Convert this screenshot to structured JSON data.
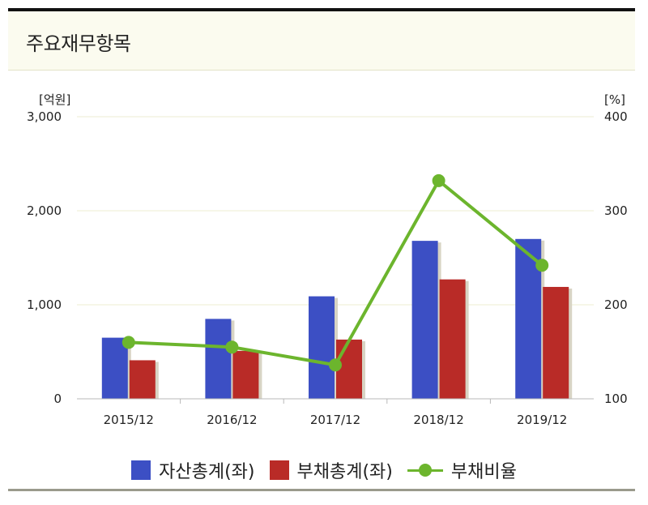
{
  "header": {
    "title": "주요재무항목"
  },
  "chart_data": {
    "type": "bar",
    "categories": [
      "2015/12",
      "2016/12",
      "2017/12",
      "2018/12",
      "2019/12"
    ],
    "series": [
      {
        "name": "자산총계(좌)",
        "type": "bar",
        "axis": "left",
        "color": "#3c4fc4",
        "values": [
          650,
          850,
          1090,
          1680,
          1700
        ]
      },
      {
        "name": "부채총계(좌)",
        "type": "bar",
        "axis": "left",
        "color": "#b92b27",
        "values": [
          410,
          510,
          630,
          1270,
          1190
        ]
      },
      {
        "name": "부채비율",
        "type": "line",
        "axis": "right",
        "color": "#6cb52d",
        "values": [
          160,
          155,
          136,
          332,
          242
        ]
      }
    ],
    "y_left": {
      "unit": "[억원]",
      "range": [
        0,
        3000
      ],
      "ticks": [
        "0",
        "1,000",
        "2,000",
        "3,000"
      ]
    },
    "y_right": {
      "unit": "[%]",
      "range": [
        100,
        400
      ],
      "ticks": [
        "100",
        "200",
        "300",
        "400"
      ]
    },
    "grid": true,
    "legend": "bottom"
  }
}
